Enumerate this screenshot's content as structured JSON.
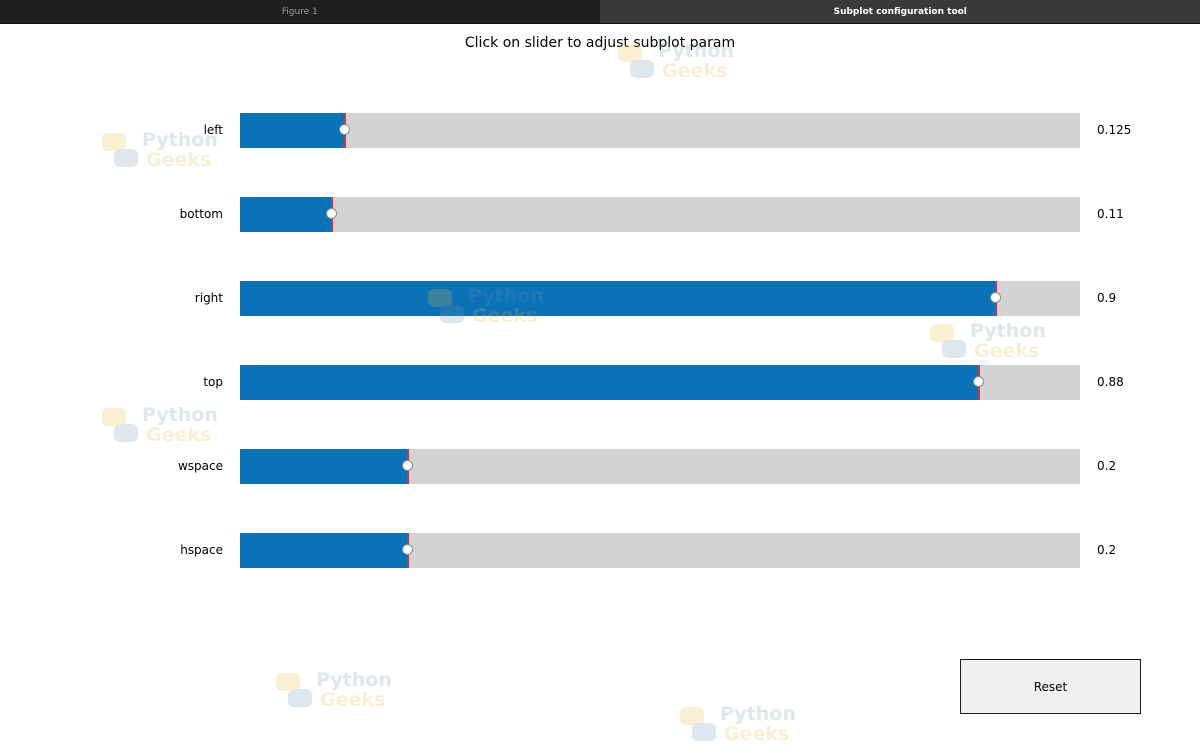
{
  "tabs": [
    {
      "label": "Figure 1",
      "active": false
    },
    {
      "label": "Subplot configuration tool",
      "active": true
    }
  ],
  "title": "Click on slider to adjust subplot param",
  "sliders": [
    {
      "label": "left",
      "value": 0.125,
      "value_text": "0.125"
    },
    {
      "label": "bottom",
      "value": 0.11,
      "value_text": "0.11"
    },
    {
      "label": "right",
      "value": 0.9,
      "value_text": "0.9"
    },
    {
      "label": "top",
      "value": 0.88,
      "value_text": "0.88"
    },
    {
      "label": "wspace",
      "value": 0.2,
      "value_text": "0.2"
    },
    {
      "label": "hspace",
      "value": 0.2,
      "value_text": "0.2"
    }
  ],
  "reset_label": "Reset",
  "watermark": {
    "line1": "Python",
    "line2": "Geeks"
  },
  "colors": {
    "slider_fill": "#0a72b6",
    "slider_track": "#d3d3d3",
    "value_marker": "#d0343e",
    "tabbar_bg": "#1e1e1e",
    "active_tab_bg": "#3a3a3c"
  }
}
